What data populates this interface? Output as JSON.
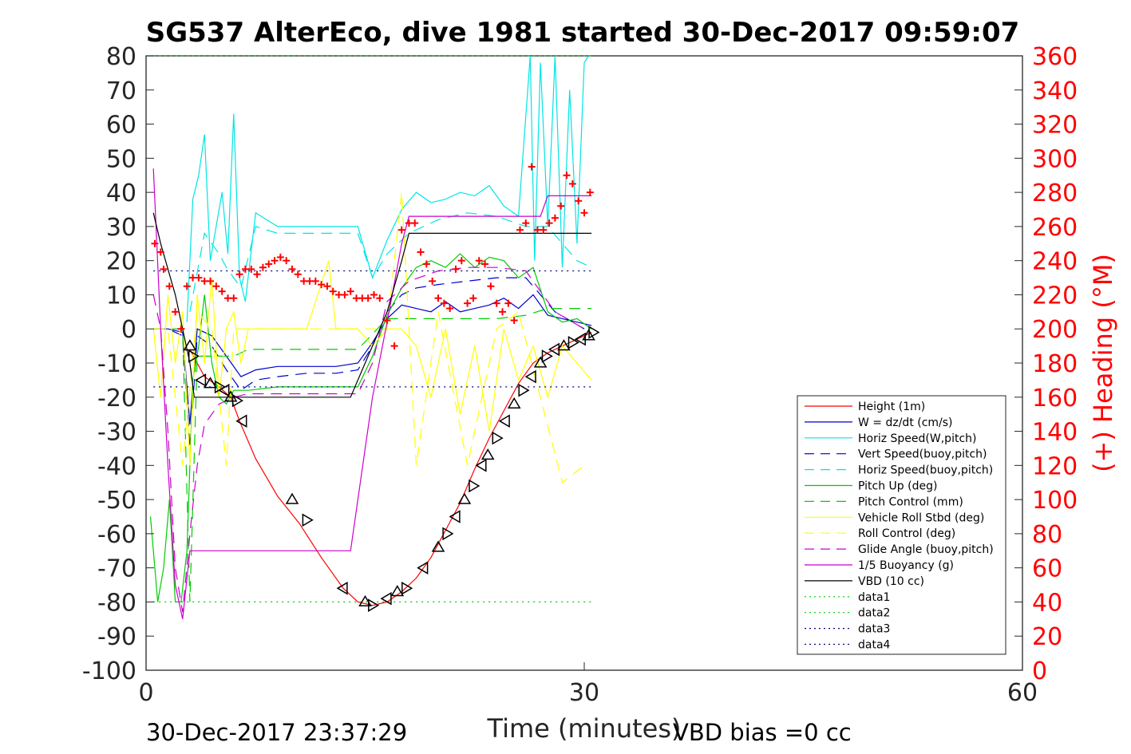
{
  "chart_data": {
    "type": "line",
    "title": "SG537 AlterEco, dive 1981 started 30-Dec-2017 09:59:07",
    "xlabel": "Time (minutes)",
    "ylabel": "",
    "y2label": "(+) Heading (°M)",
    "xlim": [
      0,
      60
    ],
    "ylim": [
      -100,
      80
    ],
    "y2lim": [
      0,
      360
    ],
    "xticks": [
      "0",
      "30",
      "60"
    ],
    "yticks": [
      "80",
      "70",
      "60",
      "50",
      "40",
      "30",
      "20",
      "10",
      "0",
      "-10",
      "-20",
      "-30",
      "-40",
      "-50",
      "-60",
      "-70",
      "-80",
      "-90",
      "-100"
    ],
    "y2ticks": [
      "360",
      "340",
      "320",
      "300",
      "280",
      "260",
      "240",
      "220",
      "200",
      "180",
      "160",
      "140",
      "120",
      "100",
      "80",
      "60",
      "40",
      "20",
      "0"
    ],
    "grid": false,
    "legend_position": "bottom-right",
    "footer_left": "30-Dec-2017 23:37:29",
    "footer_right": "VBD bias =0 cc",
    "colors": {
      "red": "#ff0000",
      "blue": "#0000cc",
      "cyan": "#00e5e5",
      "green": "#00cc00",
      "yellow": "#ffff00",
      "magenta": "#cc00cc",
      "black": "#000000",
      "navy": "#000080"
    },
    "series": [
      {
        "name": "Height (1m)",
        "color": "#ff0000",
        "dash": "solid",
        "x": [
          3,
          4,
          5,
          5.8,
          6.4,
          7.5,
          9,
          10.5,
          12,
          13.5,
          14.5,
          15.5,
          16.5,
          17.5,
          18.5,
          19.5,
          20.5,
          21.5,
          22.5,
          23.5,
          24.5,
          25.5,
          26.5,
          27.5,
          28.5,
          29.5,
          30.5
        ],
        "y": [
          -6,
          -14,
          -17,
          -20,
          -27,
          -38,
          -49,
          -57,
          -67,
          -76,
          -80,
          -81,
          -80,
          -77,
          -73,
          -67,
          -59,
          -51,
          -41,
          -32,
          -24,
          -16,
          -10,
          -7,
          -5,
          -3,
          -1
        ]
      },
      {
        "name": "W = dz/dt (cm/s)",
        "color": "#0000cc",
        "dash": "solid",
        "x": [
          0.5,
          1.5,
          2.5,
          3,
          3.5,
          4.5,
          5.5,
          6.5,
          7.5,
          9,
          11,
          13,
          14.5,
          15.5,
          16.5,
          17.5,
          18.5,
          19.5,
          20.5,
          21.5,
          22.5,
          23.5,
          24.5,
          25.5,
          26.5,
          27.5,
          28.5,
          29.5,
          30.5
        ],
        "y": [
          0,
          0,
          -1,
          -28,
          0,
          -2,
          -8,
          -14,
          -12,
          -11,
          -11,
          -11,
          -10,
          -4,
          3,
          7,
          6,
          5,
          8,
          5,
          6,
          7,
          9,
          6,
          10,
          4,
          3,
          2,
          1
        ]
      },
      {
        "name": "Horiz Speed(W,pitch)",
        "color": "#00e5e5",
        "dash": "solid",
        "x": [
          2.8,
          3.2,
          3.6,
          4,
          4.4,
          4.8,
          5.2,
          5.6,
          6,
          6.4,
          6.8,
          7.5,
          9,
          11,
          13,
          14.5,
          15.5,
          16.5,
          17.5,
          18.5,
          19.5,
          20.5,
          21.5,
          22.5,
          23.5,
          24.5,
          25.5,
          26.3,
          26.6,
          27,
          27.5,
          28,
          28.5,
          29,
          29.5,
          30,
          30.3
        ],
        "y": [
          2,
          38,
          45,
          57,
          20,
          30,
          40,
          22,
          63,
          15,
          8,
          34,
          30,
          30,
          30,
          30,
          15,
          26,
          35,
          40,
          37,
          38,
          40,
          39,
          42,
          36,
          33,
          80,
          20,
          78,
          30,
          80,
          18,
          70,
          25,
          78,
          80
        ]
      },
      {
        "name": "Vert Speed(buoy,pitch)",
        "color": "#0000cc",
        "dash": "long",
        "x": [
          0.5,
          1.5,
          2.5,
          3,
          3.5,
          4.5,
          5.5,
          6.5,
          7.5,
          9,
          11,
          13,
          14.5,
          15.5,
          16.5,
          17.5,
          18.5,
          20,
          22,
          24,
          26,
          28,
          30
        ],
        "y": [
          0,
          0,
          -2,
          -35,
          -2,
          -5,
          -12,
          -18,
          -15,
          -14,
          -13,
          -13,
          -12,
          -5,
          5,
          10,
          12,
          13,
          14,
          15,
          15,
          5,
          0
        ]
      },
      {
        "name": "Horiz Speed(buoy,pitch)",
        "color": "#00e5e5",
        "dash": "long",
        "x": [
          3,
          4,
          5,
          5.5,
          6.5,
          7.5,
          9,
          11,
          13,
          14.5,
          15.5,
          16.5,
          18,
          20,
          22,
          24,
          26,
          27.5,
          28.5,
          29.5,
          30.5
        ],
        "y": [
          5,
          28,
          22,
          18,
          12,
          30,
          28,
          28,
          28,
          28,
          15,
          22,
          28,
          32,
          34,
          33,
          30,
          30,
          25,
          20,
          18
        ]
      },
      {
        "name": "Pitch Up (deg)",
        "color": "#00cc00",
        "dash": "solid",
        "x": [
          0.3,
          0.8,
          1.2,
          1.6,
          2,
          2.4,
          2.8,
          3.2,
          3.6,
          4,
          4.5,
          5,
          5.5,
          6,
          7,
          9,
          11,
          13,
          14.5,
          15.5,
          16.5,
          17.5,
          18.5,
          19.5,
          20.5,
          21.5,
          22.5,
          23.5,
          24.5,
          25.5,
          26.5,
          27.5,
          28.5,
          29.5,
          30.5
        ],
        "y": [
          -55,
          -80,
          -70,
          -50,
          -80,
          -80,
          -65,
          -15,
          -5,
          10,
          -10,
          -20,
          -22,
          -18,
          -18,
          -17,
          -17,
          -17,
          -17,
          -8,
          4,
          12,
          18,
          20,
          18,
          22,
          18,
          21,
          20,
          15,
          18,
          5,
          2,
          3,
          0
        ]
      },
      {
        "name": "Pitch Control (mm)",
        "color": "#00cc00",
        "dash": "long",
        "x": [
          0.5,
          2.5,
          3,
          3.5,
          6,
          7,
          9,
          11,
          13,
          14.5,
          16.5,
          18,
          20,
          22,
          24,
          26,
          27.5,
          30.5
        ],
        "y": [
          0,
          0,
          -80,
          -8,
          -8,
          -6,
          -6,
          -6,
          -6,
          -6,
          3,
          3,
          3,
          3,
          3,
          4,
          6,
          6
        ]
      },
      {
        "name": "Vehicle Roll Stbd (deg)",
        "color": "#ffff00",
        "dash": "solid",
        "x": [
          0.5,
          1,
          1.5,
          2,
          2.5,
          3,
          3.5,
          4,
          4.5,
          5,
          5.5,
          6,
          6.5,
          7,
          9,
          11,
          12.5,
          13,
          14.5,
          15.5,
          16.5,
          17.5,
          18.5,
          19.5,
          20.5,
          21.5,
          22.5,
          23.5,
          24.5,
          25.5,
          26.5,
          27.5,
          28.5,
          29.5,
          30.5
        ],
        "y": [
          0,
          -20,
          10,
          -10,
          5,
          -40,
          10,
          -10,
          15,
          -20,
          0,
          5,
          -10,
          0,
          0,
          0,
          20,
          0,
          0,
          -5,
          0,
          0,
          -5,
          -20,
          0,
          -25,
          -5,
          -30,
          0,
          -15,
          -5,
          -20,
          -5,
          -10,
          -15
        ]
      },
      {
        "name": "Roll Control (deg)",
        "color": "#ffff00",
        "dash": "long",
        "x": [
          0.5,
          1.5,
          2.5,
          3.5,
          4.5,
          5.5,
          6,
          7,
          9,
          11,
          13,
          15,
          16.5,
          17.5,
          18.5,
          20,
          22,
          24,
          25.5,
          27,
          28.5,
          30
        ],
        "y": [
          0,
          0,
          -40,
          5,
          0,
          -40,
          0,
          0,
          0,
          0,
          0,
          0,
          0,
          40,
          -40,
          5,
          -40,
          0,
          5,
          -20,
          -45,
          -40
        ]
      },
      {
        "name": "Glide Angle (buoy,pitch)",
        "color": "#cc00cc",
        "dash": "long",
        "x": [
          0.5,
          1,
          1.5,
          2,
          2.5,
          3,
          3.5,
          4,
          5,
          6,
          7,
          9,
          11,
          13,
          14.5,
          15.5,
          16.5,
          18,
          20,
          22,
          24,
          26,
          28,
          30
        ],
        "y": [
          10,
          0,
          -30,
          -70,
          -83,
          -60,
          -40,
          -28,
          -22,
          -20,
          -19,
          -19,
          -19,
          -19,
          -19,
          -10,
          8,
          14,
          17,
          18,
          18,
          17,
          5,
          0
        ]
      },
      {
        "name": "1/5 Buoyancy (g)",
        "color": "#cc00cc",
        "dash": "solid",
        "x": [
          0.5,
          1,
          1.5,
          2,
          2.5,
          3,
          3.5,
          8,
          14,
          15.5,
          16.5,
          17.5,
          18,
          24,
          27,
          27.5,
          30.5
        ],
        "y": [
          47,
          0,
          -40,
          -75,
          -85,
          -65,
          -65,
          -65,
          -65,
          -20,
          2,
          25,
          33,
          33,
          33,
          39,
          39
        ]
      },
      {
        "name": "VBD (10 cc)",
        "color": "#000000",
        "dash": "solid",
        "x": [
          0.5,
          1,
          2,
          3,
          3.3,
          14,
          15,
          16.5,
          17.5,
          18,
          30.5
        ],
        "y": [
          34,
          25,
          10,
          -10,
          -20,
          -20,
          -10,
          5,
          20,
          28,
          28
        ]
      },
      {
        "name": "data1",
        "color": "#00cc00",
        "dash": "dot",
        "x": [
          0.5,
          30.5
        ],
        "y": [
          80,
          80
        ]
      },
      {
        "name": "data2",
        "color": "#00cc00",
        "dash": "dot",
        "x": [
          0.5,
          30.5
        ],
        "y": [
          -80,
          -80
        ]
      },
      {
        "name": "data3",
        "color": "#000080",
        "dash": "dot",
        "x": [
          0.5,
          30.5
        ],
        "y": [
          -17,
          -17
        ]
      },
      {
        "name": "data4",
        "color": "#000080",
        "dash": "dot",
        "x": [
          0.5,
          30.5
        ],
        "y": [
          17,
          17
        ]
      }
    ],
    "heading_series": {
      "name": "(+) Heading (°M)",
      "color": "#ff0000",
      "marker": "plus",
      "x": [
        0.6,
        1,
        1.2,
        1.6,
        2,
        2.4,
        2.8,
        3.2,
        3.6,
        4,
        4.4,
        4.8,
        5.2,
        5.6,
        6,
        6.4,
        6.8,
        7.2,
        7.6,
        8,
        8.4,
        8.8,
        9.2,
        9.6,
        10,
        10.4,
        10.8,
        11.2,
        11.6,
        12,
        12.4,
        12.8,
        13.2,
        13.6,
        14,
        14.4,
        14.8,
        15.2,
        15.6,
        16,
        16.5,
        17,
        17.5,
        18,
        18.4,
        18.8,
        19.2,
        19.6,
        20,
        20.4,
        20.8,
        21.2,
        21.6,
        22,
        22.4,
        22.8,
        23.2,
        23.6,
        24,
        24.4,
        24.8,
        25.2,
        25.6,
        26,
        26.4,
        26.8,
        27.2,
        27.6,
        28,
        28.4,
        28.8,
        29.2,
        29.6,
        30,
        30.4
      ],
      "y": [
        250,
        245,
        235,
        225,
        210,
        200,
        225,
        230,
        230,
        228,
        228,
        225,
        222,
        218,
        218,
        232,
        235,
        235,
        232,
        236,
        238,
        240,
        242,
        240,
        235,
        232,
        228,
        228,
        228,
        226,
        225,
        222,
        220,
        220,
        222,
        218,
        218,
        218,
        220,
        218,
        205,
        190,
        258,
        262,
        262,
        245,
        238,
        228,
        218,
        215,
        212,
        235,
        240,
        215,
        218,
        240,
        238,
        225,
        215,
        210,
        215,
        205,
        258,
        262,
        295,
        258,
        258,
        262,
        265,
        272,
        290,
        285,
        275,
        268,
        280
      ]
    },
    "markers": {
      "name": "Height markers",
      "color": "#000000",
      "marker": "triangle",
      "x": [
        3,
        3.2,
        3.8,
        4.4,
        5,
        5.4,
        5.8,
        6.2,
        6.6,
        10,
        11,
        13.5,
        15,
        15.5,
        16.5,
        17.2,
        17.8,
        19,
        20,
        20.6,
        21.2,
        21.8,
        22.4,
        23,
        23.4,
        24,
        24.6,
        25.2,
        25.8,
        26.4,
        27,
        27.4,
        28,
        28.6,
        29.2,
        29.8,
        30.3,
        30.6
      ],
      "y": [
        -5,
        -8,
        -15,
        -16,
        -17,
        -18,
        -20,
        -21,
        -27,
        -50,
        -56,
        -76,
        -80,
        -81,
        -79,
        -77,
        -76,
        -70,
        -64,
        -60,
        -55,
        -50,
        -46,
        -40,
        -37,
        -32,
        -27,
        -22,
        -18,
        -14,
        -10,
        -8,
        -6,
        -5,
        -4,
        -3,
        -2,
        -1
      ]
    }
  }
}
